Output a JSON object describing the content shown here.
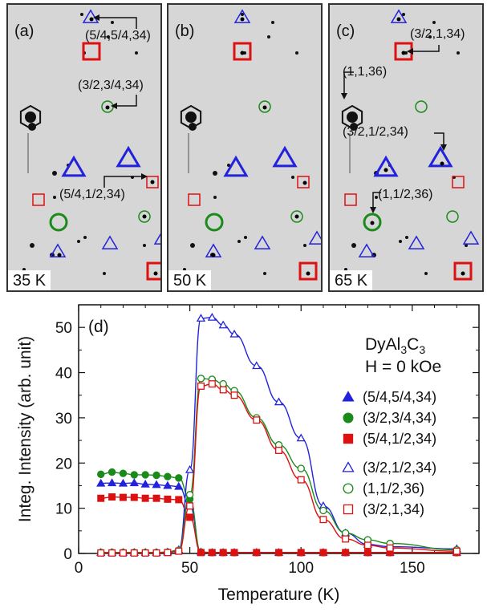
{
  "panels": [
    {
      "id": "a",
      "letter": "(a)",
      "temperature": "35 K"
    },
    {
      "id": "b",
      "letter": "(b)",
      "temperature": "50 K"
    },
    {
      "id": "c",
      "letter": "(c)",
      "temperature": "65 K"
    }
  ],
  "annotations": {
    "a_top": "(5/4,5/4,34)",
    "a_mid": "(3/2,3/4,34)",
    "a_low": "(5/4,1/2,34)",
    "c_top": "(3/2,1,34)",
    "c_left": "(1,1,36)",
    "c_mid": "(3/2,1/2,34)",
    "c_low": "(1,1/2,36)"
  },
  "colors": {
    "blue": "#2222dd",
    "green": "#1a8a1a",
    "red": "#dd1111",
    "black": "#111111"
  },
  "chart_data": {
    "type": "scatter",
    "panel_label": "(d)",
    "compound_text": "DyAl",
    "compound_sub1": "3",
    "compound_mid": "C",
    "compound_sub2": "3",
    "field_text": "H = 0 kOe",
    "xlabel": "Temperature  (K)",
    "ylabel": "Integ. Intensity  (arb. unit)",
    "xlim": [
      0,
      180
    ],
    "ylim": [
      0,
      55
    ],
    "xticks": [
      0,
      50,
      100,
      150
    ],
    "yticks": [
      0,
      10,
      20,
      30,
      40,
      50
    ],
    "legend_position": "right",
    "series": [
      {
        "name": "(5/4,5/4,34)",
        "color": "#2222dd",
        "marker": "triangle",
        "filled": true,
        "x": [
          10,
          15,
          20,
          25,
          30,
          35,
          40,
          45,
          50,
          55,
          60,
          65,
          70,
          80,
          90,
          100,
          110,
          120,
          130,
          140,
          170
        ],
        "y": [
          15.5,
          15.6,
          15.5,
          15.6,
          15.3,
          15.2,
          15.0,
          14.8,
          10.5,
          0.3,
          0.2,
          0.2,
          0.2,
          0.2,
          0.2,
          0.2,
          0.2,
          0.2,
          0.2,
          0.2,
          0.2
        ]
      },
      {
        "name": "(3/2,3/4,34)",
        "color": "#1a8a1a",
        "marker": "circle",
        "filled": true,
        "x": [
          10,
          15,
          20,
          25,
          30,
          35,
          40,
          45,
          50,
          55,
          60,
          65,
          70,
          80,
          90,
          100,
          110,
          120,
          130,
          140,
          170
        ],
        "y": [
          17.5,
          18.0,
          17.7,
          17.4,
          17.4,
          17.3,
          17.0,
          16.7,
          12.0,
          0.3,
          0.2,
          0.2,
          0.2,
          0.2,
          0.2,
          0.2,
          0.2,
          0.2,
          0.2,
          0.2,
          0.2
        ]
      },
      {
        "name": "(5/4,1/2,34)",
        "color": "#dd1111",
        "marker": "square",
        "filled": true,
        "x": [
          10,
          15,
          20,
          25,
          30,
          35,
          40,
          45,
          50,
          55,
          60,
          65,
          70,
          80,
          90,
          100,
          110,
          120,
          130,
          140,
          170
        ],
        "y": [
          12.2,
          12.5,
          12.4,
          12.4,
          12.2,
          12.2,
          12.0,
          11.9,
          8.0,
          0.2,
          0.2,
          0.2,
          0.2,
          0.2,
          0.2,
          0.2,
          0.2,
          0.2,
          0.2,
          0.2,
          0.2
        ]
      },
      {
        "name": "(3/2,1/2,34)",
        "color": "#2222dd",
        "marker": "triangle",
        "filled": false,
        "x": [
          10,
          15,
          20,
          25,
          30,
          35,
          40,
          45,
          50,
          55,
          60,
          65,
          70,
          80,
          90,
          100,
          110,
          120,
          130,
          140,
          170
        ],
        "y": [
          0.2,
          0.2,
          0.2,
          0.2,
          0.2,
          0.2,
          0.3,
          0.8,
          18.5,
          52.0,
          52.2,
          50.5,
          48.5,
          41.5,
          33.5,
          25.5,
          10.5,
          4.5,
          2.0,
          1.5,
          1.0
        ]
      },
      {
        "name": "(1,1/2,36)",
        "color": "#1a8a1a",
        "marker": "circle",
        "filled": false,
        "x": [
          10,
          15,
          20,
          25,
          30,
          35,
          40,
          45,
          50,
          55,
          60,
          65,
          70,
          80,
          90,
          100,
          110,
          120,
          130,
          140,
          170
        ],
        "y": [
          0.2,
          0.2,
          0.2,
          0.2,
          0.2,
          0.2,
          0.3,
          0.7,
          13.0,
          38.7,
          38.5,
          37.5,
          36.0,
          30.0,
          24.0,
          18.8,
          9.5,
          4.5,
          3.0,
          2.2,
          0.8
        ]
      },
      {
        "name": "(3/2,1,34)",
        "color": "#dd1111",
        "marker": "square",
        "filled": false,
        "x": [
          10,
          15,
          20,
          25,
          30,
          35,
          40,
          45,
          50,
          55,
          60,
          65,
          70,
          80,
          90,
          100,
          110,
          120,
          130,
          140,
          170
        ],
        "y": [
          0.1,
          0.1,
          0.1,
          0.1,
          0.1,
          0.1,
          0.2,
          0.5,
          10.5,
          37.0,
          37.5,
          36.2,
          35.0,
          29.5,
          22.8,
          16.3,
          7.5,
          3.2,
          1.8,
          1.2,
          0.5
        ]
      }
    ]
  }
}
